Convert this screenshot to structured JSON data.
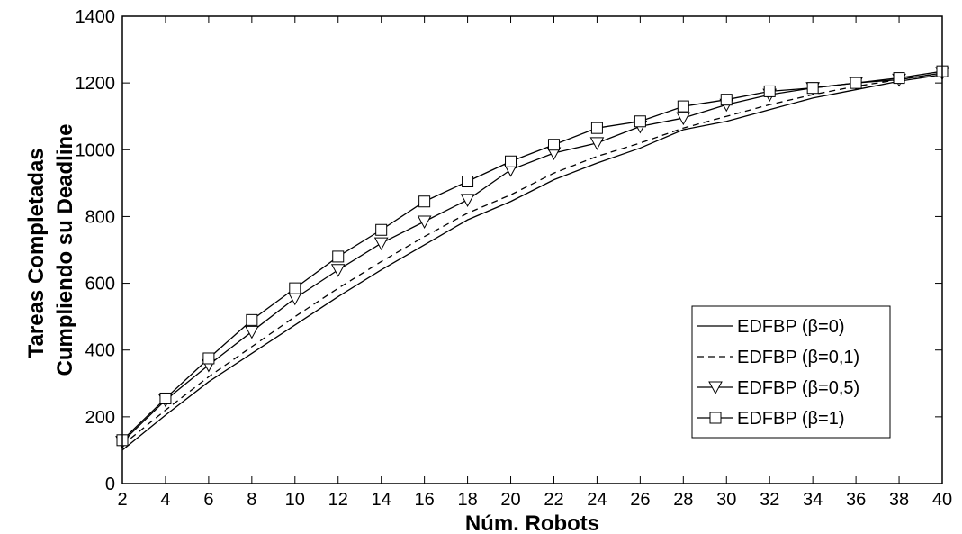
{
  "chart_data": {
    "type": "line",
    "xlabel": "Núm. Robots",
    "ylabel_lines": [
      "Tareas Completadas",
      "Cumpliendo su Deadline"
    ],
    "xlim": [
      2,
      40
    ],
    "ylim": [
      0,
      1400
    ],
    "xticks": [
      2,
      4,
      6,
      8,
      10,
      12,
      14,
      16,
      18,
      20,
      22,
      24,
      26,
      28,
      30,
      32,
      34,
      36,
      38,
      40
    ],
    "yticks": [
      0,
      200,
      400,
      600,
      800,
      1000,
      1200,
      1400
    ],
    "grid": false,
    "legend_position": "lower-right",
    "x": [
      2,
      4,
      6,
      8,
      10,
      12,
      14,
      16,
      18,
      20,
      22,
      24,
      26,
      28,
      30,
      32,
      34,
      36,
      38,
      40
    ],
    "series": [
      {
        "name": "EDFBP (β=0)",
        "style": "solid",
        "marker": "none",
        "values": [
          100,
          205,
          305,
          390,
          475,
          560,
          640,
          715,
          790,
          845,
          910,
          960,
          1005,
          1060,
          1085,
          1120,
          1155,
          1180,
          1205,
          1225
        ]
      },
      {
        "name": "EDFBP (β=0,1)",
        "style": "dashed",
        "marker": "none",
        "values": [
          115,
          220,
          320,
          410,
          500,
          585,
          665,
          740,
          810,
          865,
          930,
          980,
          1020,
          1065,
          1100,
          1135,
          1165,
          1190,
          1210,
          1230
        ]
      },
      {
        "name": "EDFBP (β=0,5)",
        "style": "solid",
        "marker": "triangle-down",
        "values": [
          125,
          250,
          355,
          455,
          555,
          640,
          720,
          785,
          850,
          940,
          990,
          1020,
          1070,
          1095,
          1135,
          1165,
          1185,
          1200,
          1210,
          1230
        ]
      },
      {
        "name": "EDFBP (β=1)",
        "style": "solid",
        "marker": "square",
        "values": [
          130,
          255,
          375,
          490,
          585,
          680,
          760,
          845,
          905,
          965,
          1015,
          1065,
          1085,
          1130,
          1150,
          1175,
          1185,
          1200,
          1215,
          1235
        ]
      }
    ]
  }
}
